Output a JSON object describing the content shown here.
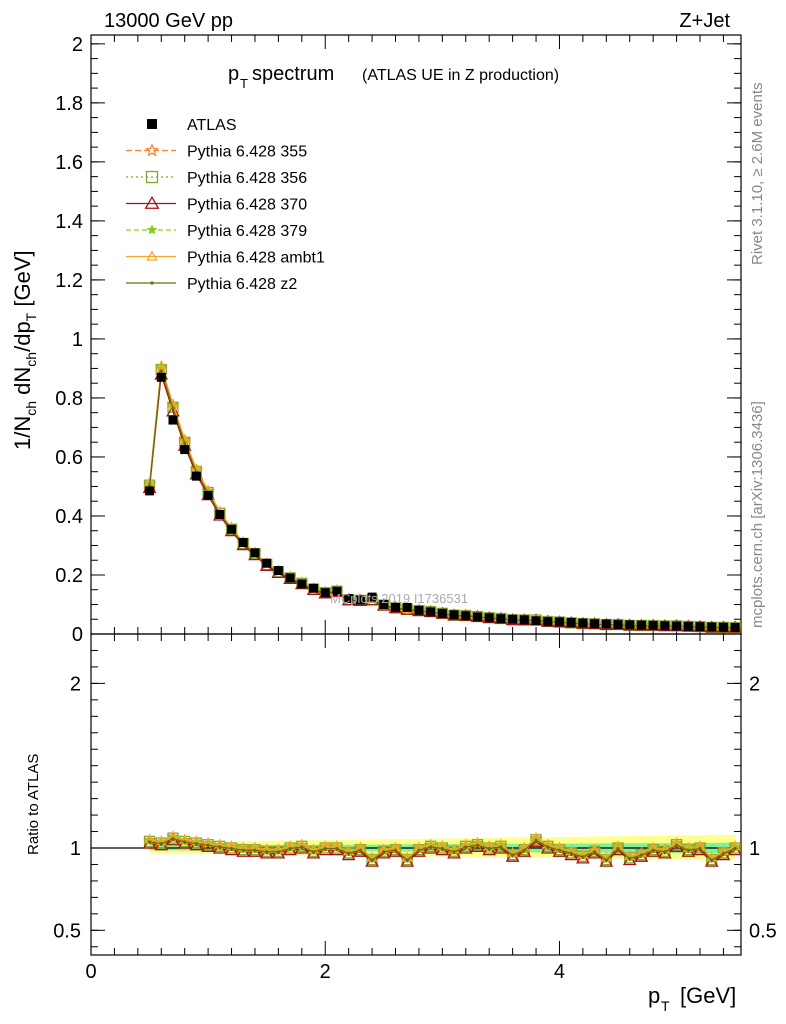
{
  "header": {
    "left": "13000 GeV pp",
    "right": "Z+Jet"
  },
  "title": {
    "main": "p",
    "main_sub": "T",
    "main_rest": " spectrum",
    "paren": "(ATLAS UE in Z production)"
  },
  "side_text": {
    "rivet": "Rivet 3.1.10, ≥ 2.6M events",
    "mcplots": "mcplots.cern.ch [arXiv:1306.3436]"
  },
  "watermark": "MCplots 2019  I1736531",
  "axes": {
    "ylabel_top": "1/N_ch dN_ch/dp_T [GeV]",
    "ylabel_bottom": "Ratio to ATLAS",
    "xlabel": "p_T [GeV]"
  },
  "legend": [
    {
      "label": "ATLAS"
    },
    {
      "label": "Pythia 6.428 355"
    },
    {
      "label": "Pythia 6.428 356"
    },
    {
      "label": "Pythia 6.428 370"
    },
    {
      "label": "Pythia 6.428 379"
    },
    {
      "label": "Pythia 6.428 ambt1"
    },
    {
      "label": "Pythia 6.428 z2"
    }
  ],
  "colors": {
    "atlas": "#000000",
    "p355": "#ff7f2a",
    "p356": "#7faa2a",
    "p370": "#aa1111",
    "p379": "#88cc22",
    "ambt1": "#f5a623",
    "z2": "#6b6b10",
    "band_yellow": "#ffff66",
    "band_green": "#66ee99"
  },
  "chart_data": {
    "type": "line",
    "top_panel": {
      "xlim": [
        0,
        5.55
      ],
      "ylim": [
        0,
        2.03
      ],
      "yticks": [
        0,
        0.2,
        0.4,
        0.6,
        0.8,
        1,
        1.2,
        1.4,
        1.6,
        1.8,
        2
      ],
      "ytick_labels": [
        "0",
        "0.2",
        "0.4",
        "0.6",
        "0.8",
        "1",
        "1.2",
        "1.4",
        "1.6",
        "1.8",
        "2"
      ]
    },
    "ratio_panel": {
      "ylim": [
        0.35,
        2.3
      ],
      "yticks": [
        0.5,
        1,
        2
      ],
      "ytick_labels": [
        "0.5",
        "1",
        "2"
      ]
    },
    "xticks": [
      0,
      2,
      4
    ],
    "xtick_labels": [
      "0",
      "2",
      "4"
    ],
    "x": [
      0.5,
      0.6,
      0.7,
      0.8,
      0.9,
      1.0,
      1.1,
      1.2,
      1.3,
      1.4,
      1.5,
      1.6,
      1.7,
      1.8,
      1.9,
      2.0,
      2.1,
      2.2,
      2.3,
      2.4,
      2.5,
      2.6,
      2.7,
      2.8,
      2.9,
      3.0,
      3.1,
      3.2,
      3.3,
      3.4,
      3.5,
      3.6,
      3.7,
      3.8,
      3.9,
      4.0,
      4.1,
      4.2,
      4.3,
      4.4,
      4.5,
      4.6,
      4.7,
      4.8,
      4.9,
      5.0,
      5.1,
      5.2,
      5.3,
      5.4,
      5.5
    ],
    "atlas_values": [
      0.485,
      0.87,
      0.725,
      0.625,
      0.535,
      0.47,
      0.405,
      0.355,
      0.31,
      0.275,
      0.24,
      0.215,
      0.19,
      0.17,
      0.155,
      0.14,
      0.145,
      0.12,
      0.115,
      0.125,
      0.1,
      0.09,
      0.09,
      0.08,
      0.075,
      0.07,
      0.065,
      0.062,
      0.058,
      0.055,
      0.052,
      0.05,
      0.048,
      0.045,
      0.042,
      0.041,
      0.039,
      0.037,
      0.035,
      0.034,
      0.032,
      0.031,
      0.03,
      0.029,
      0.028,
      0.027,
      0.026,
      0.025,
      0.024,
      0.023,
      0.022
    ],
    "mc_ratio": [
      1.04,
      1.03,
      1.06,
      1.04,
      1.03,
      1.02,
      1.01,
      1.0,
      0.99,
      0.99,
      0.98,
      0.98,
      1.0,
      1.01,
      0.98,
      1.0,
      1.0,
      0.97,
      0.99,
      0.93,
      0.98,
      0.99,
      0.93,
      0.99,
      1.01,
      1.0,
      0.98,
      1.01,
      1.02,
      1.0,
      1.01,
      0.96,
      0.99,
      1.05,
      1.01,
      0.99,
      0.97,
      0.95,
      0.98,
      0.93,
      1.0,
      0.94,
      0.96,
      0.99,
      0.98,
      1.02,
      0.99,
      1.0,
      0.93,
      0.97,
      1.0
    ],
    "series": [
      {
        "name": "Pythia 6.428 355",
        "marker": "star",
        "dash": "6,3",
        "offset": 0.01
      },
      {
        "name": "Pythia 6.428 356",
        "marker": "square-open",
        "dash": "2,3",
        "offset": 0.0
      },
      {
        "name": "Pythia 6.428 370",
        "marker": "triangle-open",
        "dash": "",
        "offset": -0.02
      },
      {
        "name": "Pythia 6.428 379",
        "marker": "star-small",
        "dash": "5,3",
        "offset": 0.005
      },
      {
        "name": "Pythia 6.428 ambt1",
        "marker": "triangle-small",
        "dash": "",
        "offset": 0.015
      },
      {
        "name": "Pythia 6.428 z2",
        "marker": "dot",
        "dash": "",
        "offset": -0.005
      }
    ]
  }
}
